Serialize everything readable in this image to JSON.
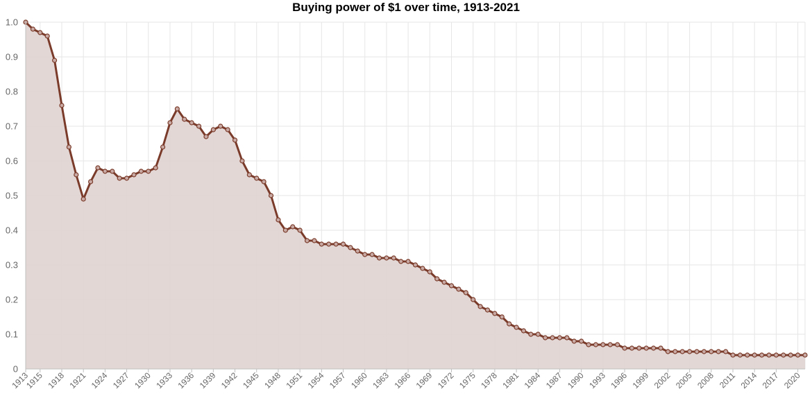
{
  "chart_data": {
    "type": "area",
    "title": "Buying power of $1 over time, 1913-2021",
    "xlabel": "",
    "ylabel": "",
    "ylim": [
      0,
      1.0
    ],
    "xlim": [
      1913,
      2021
    ],
    "grid": true,
    "legend": "none",
    "y_ticks": [
      "0",
      "0.1",
      "0.2",
      "0.3",
      "0.4",
      "0.5",
      "0.6",
      "0.7",
      "0.8",
      "0.9",
      "1.0"
    ],
    "x_tick_labels": [
      "1913",
      "1915",
      "1918",
      "1921",
      "1924",
      "1927",
      "1930",
      "1933",
      "1936",
      "1939",
      "1942",
      "1945",
      "1948",
      "1951",
      "1954",
      "1957",
      "1960",
      "1963",
      "1966",
      "1969",
      "1972",
      "1975",
      "1978",
      "1981",
      "1984",
      "1987",
      "1990",
      "1993",
      "1996",
      "1999",
      "2002",
      "2005",
      "2008",
      "2011",
      "2014",
      "2017",
      "2020"
    ],
    "x": [
      1913,
      1914,
      1915,
      1916,
      1917,
      1918,
      1919,
      1920,
      1921,
      1922,
      1923,
      1924,
      1925,
      1926,
      1927,
      1928,
      1929,
      1930,
      1931,
      1932,
      1933,
      1934,
      1935,
      1936,
      1937,
      1938,
      1939,
      1940,
      1941,
      1942,
      1943,
      1944,
      1945,
      1946,
      1947,
      1948,
      1949,
      1950,
      1951,
      1952,
      1953,
      1954,
      1955,
      1956,
      1957,
      1958,
      1959,
      1960,
      1961,
      1962,
      1963,
      1964,
      1965,
      1966,
      1967,
      1968,
      1969,
      1970,
      1971,
      1972,
      1973,
      1974,
      1975,
      1976,
      1977,
      1978,
      1979,
      1980,
      1981,
      1982,
      1983,
      1984,
      1985,
      1986,
      1987,
      1988,
      1989,
      1990,
      1991,
      1992,
      1993,
      1994,
      1995,
      1996,
      1997,
      1998,
      1999,
      2000,
      2001,
      2002,
      2003,
      2004,
      2005,
      2006,
      2007,
      2008,
      2009,
      2010,
      2011,
      2012,
      2013,
      2014,
      2015,
      2016,
      2017,
      2018,
      2019,
      2020,
      2021
    ],
    "values": [
      1.0,
      0.98,
      0.97,
      0.96,
      0.89,
      0.76,
      0.64,
      0.56,
      0.49,
      0.54,
      0.58,
      0.57,
      0.57,
      0.55,
      0.55,
      0.56,
      0.57,
      0.57,
      0.58,
      0.64,
      0.71,
      0.75,
      0.72,
      0.71,
      0.7,
      0.67,
      0.69,
      0.7,
      0.69,
      0.66,
      0.6,
      0.56,
      0.55,
      0.54,
      0.5,
      0.43,
      0.4,
      0.41,
      0.4,
      0.37,
      0.37,
      0.36,
      0.36,
      0.36,
      0.36,
      0.35,
      0.34,
      0.33,
      0.33,
      0.32,
      0.32,
      0.32,
      0.31,
      0.31,
      0.3,
      0.29,
      0.28,
      0.26,
      0.25,
      0.24,
      0.23,
      0.22,
      0.2,
      0.18,
      0.17,
      0.16,
      0.15,
      0.13,
      0.12,
      0.11,
      0.1,
      0.1,
      0.09,
      0.09,
      0.09,
      0.09,
      0.08,
      0.08,
      0.07,
      0.07,
      0.07,
      0.07,
      0.07,
      0.06,
      0.06,
      0.06,
      0.06,
      0.06,
      0.06,
      0.05,
      0.05,
      0.05,
      0.05,
      0.05,
      0.05,
      0.05,
      0.05,
      0.05,
      0.04,
      0.04,
      0.04,
      0.04,
      0.04,
      0.04,
      0.04,
      0.04,
      0.04,
      0.04,
      0.04
    ],
    "colors": {
      "line": "#7a3b2a",
      "fill": "#e2d5d3",
      "grid": "#e6e6e6",
      "axis": "#bfbfbf",
      "tick_text": "#666666"
    }
  }
}
